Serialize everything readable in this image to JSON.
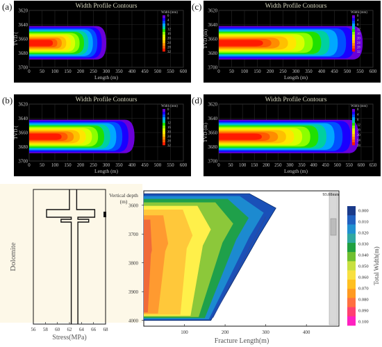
{
  "colors": {
    "panel_bg": "#000000",
    "axis_text": "#c8c8c8",
    "title_text": "#d8d8c0",
    "contour": [
      "#ff1a00",
      "#ff5a00",
      "#ff8c00",
      "#ffc000",
      "#ffe600",
      "#d8ff00",
      "#8cff00",
      "#20e000",
      "#00d0a0",
      "#00a8ff",
      "#0050ff",
      "#1a00ff",
      "#6a00d8"
    ],
    "legend_e": [
      "#1a3a8a",
      "#2060c0",
      "#2090d0",
      "#30a8a0",
      "#20a040",
      "#70c030",
      "#c8e040",
      "#f8e040",
      "#ffc020",
      "#ff9a20",
      "#ff7040",
      "#ff4070",
      "#ff20c0"
    ]
  },
  "panels": [
    {
      "label": "(a)",
      "title": "Width Profile Contours",
      "xlabel": "Length (m)",
      "ylabel": "TVD (",
      "xticks": [
        "0",
        "50",
        "100",
        "150",
        "200",
        "250",
        "300",
        "350",
        "400",
        "450",
        "500",
        "550",
        "600"
      ],
      "yticks": [
        "3620",
        "3640",
        "3660",
        "3680",
        "3700"
      ],
      "legend_title": "Width (mm)",
      "legend_ticks": [
        "0",
        "4",
        "8",
        "12",
        "16",
        "20",
        "24",
        "28",
        "32"
      ],
      "chart_data": {
        "type": "heatmap",
        "x_range": [
          0,
          600
        ],
        "y_range": [
          3620,
          3700
        ],
        "fracture_length": 300,
        "top": 3642,
        "bottom": 3689,
        "center": 3666,
        "width_ticks": [
          0,
          4,
          8,
          12,
          16,
          20,
          24,
          28,
          32
        ]
      }
    },
    {
      "label": "(b)",
      "title": "Width Profile Contours",
      "xlabel": "Length (m)",
      "ylabel": "TVD (",
      "xticks": [
        "0",
        "50",
        "100",
        "150",
        "200",
        "250",
        "300",
        "350",
        "400",
        "450",
        "500",
        "550",
        "600"
      ],
      "yticks": [
        "3620",
        "3640",
        "3660",
        "3680",
        "3700"
      ],
      "legend_title": "Width (mm)",
      "legend_ticks": [
        "0",
        "4",
        "8",
        "12",
        "16",
        "20",
        "24",
        "28",
        "32"
      ],
      "chart_data": {
        "type": "heatmap",
        "x_range": [
          0,
          600
        ],
        "y_range": [
          3620,
          3700
        ],
        "fracture_length": 410,
        "top": 3642,
        "bottom": 3689,
        "center": 3666,
        "width_ticks": [
          0,
          4,
          8,
          12,
          16,
          20,
          24,
          28,
          32
        ]
      }
    },
    {
      "label": "(c)",
      "title": "Width Profile Contours",
      "xlabel": "Length (m)",
      "ylabel": "TVD (m)",
      "xticks": [
        "0",
        "50",
        "100",
        "150",
        "200",
        "250",
        "300",
        "350",
        "400",
        "450",
        "500",
        "550",
        "600"
      ],
      "yticks": [
        "3620",
        "3640",
        "3660",
        "3680",
        "3700"
      ],
      "legend_title": "Width (mm)",
      "legend_ticks": [
        "0",
        "4",
        "8",
        "12",
        "16",
        "20",
        "24",
        "28",
        "32"
      ],
      "chart_data": {
        "type": "heatmap",
        "x_range": [
          0,
          600
        ],
        "y_range": [
          3620,
          3700
        ],
        "fracture_length": 560,
        "top": 3642,
        "bottom": 3689,
        "center": 3666,
        "width_ticks": [
          0,
          4,
          8,
          12,
          16,
          20,
          24,
          28,
          32
        ]
      }
    },
    {
      "label": "(d)",
      "title": "Width Profile Contours",
      "xlabel": "Length (m)",
      "ylabel": "TVD (m)",
      "xticks": [
        "0",
        "50",
        "100",
        "150",
        "200",
        "250",
        "300",
        "350",
        "400",
        "450",
        "500",
        "550",
        "600",
        "650"
      ],
      "yticks": [
        "3620",
        "3640",
        "3660",
        "3680",
        "3700"
      ],
      "legend_title": "Width (mm)",
      "legend_ticks": [
        "0",
        "4",
        "8",
        "12",
        "16",
        "20",
        "24",
        "28"
      ],
      "chart_data": {
        "type": "heatmap",
        "x_range": [
          0,
          650
        ],
        "y_range": [
          3620,
          3700
        ],
        "fracture_length": 590,
        "top": 3642,
        "bottom": 3689,
        "center": 3666,
        "width_ticks": [
          0,
          4,
          8,
          12,
          16,
          20,
          24,
          28
        ]
      }
    }
  ],
  "panel_e": {
    "label": "(e)",
    "stress": {
      "ylabel": "Dolomite",
      "xlabel": "Stress(MPa)",
      "xticks": [
        "56",
        "58",
        "60",
        "62",
        "64",
        "66",
        "68"
      ],
      "chart_data": {
        "type": "line",
        "x_range": [
          56,
          68
        ]
      }
    },
    "contour": {
      "ylabel": "Vertical depth\n(m)",
      "ylabel_line1": "Vertical depth",
      "ylabel_line2": "(m)",
      "yticks": [
        "3600",
        "3700",
        "3800",
        "3900",
        "4000"
      ],
      "xticks": [
        "100",
        "200",
        "300",
        "400"
      ],
      "xlabel": "Fracture Length(m)",
      "max_label": "93.08mm",
      "colorbar_label": "Total Width(m)",
      "colorbar_ticks": [
        "0.000",
        "0.010",
        "0.020",
        "0.030",
        "0.040",
        "0.050",
        "0.060",
        "0.070",
        "0.080",
        "0.090",
        "0.100"
      ],
      "chart_data": {
        "type": "heatmap",
        "x_range": [
          0,
          480
        ],
        "y_range": [
          3550,
          4020
        ],
        "fracture_top": 3560,
        "fracture_bottom": 4000,
        "max_length": 325
      }
    }
  }
}
